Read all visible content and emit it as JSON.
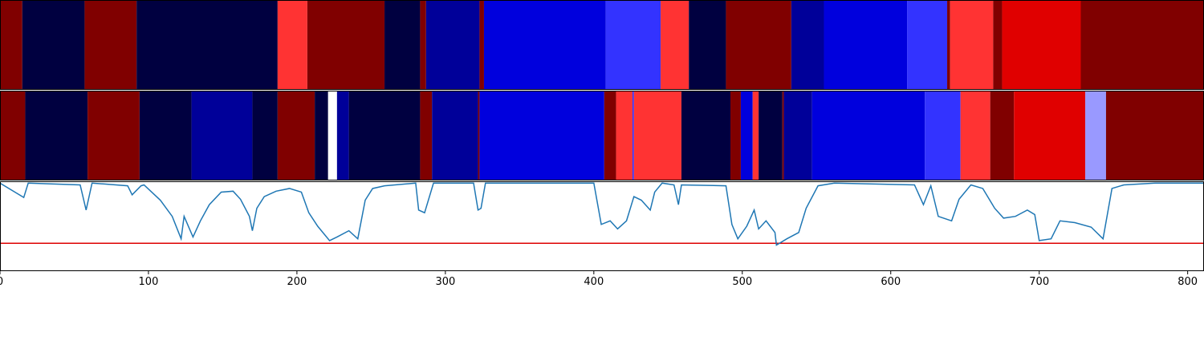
{
  "chart_data": [
    {
      "type": "segments",
      "xlim": [
        0,
        811
      ],
      "segments": [
        {
          "start": 0,
          "end": 15,
          "color": "#800000"
        },
        {
          "start": 15,
          "end": 57,
          "color": "#000040"
        },
        {
          "start": 57,
          "end": 92,
          "color": "#800000"
        },
        {
          "start": 92,
          "end": 187,
          "color": "#000040"
        },
        {
          "start": 187,
          "end": 207,
          "color": "#ff3333"
        },
        {
          "start": 207,
          "end": 259,
          "color": "#800000"
        },
        {
          "start": 259,
          "end": 283,
          "color": "#000040"
        },
        {
          "start": 283,
          "end": 287,
          "color": "#800000"
        },
        {
          "start": 287,
          "end": 323,
          "color": "#000099"
        },
        {
          "start": 323,
          "end": 326,
          "color": "#800000"
        },
        {
          "start": 326,
          "end": 408,
          "color": "#0000dd"
        },
        {
          "start": 408,
          "end": 445,
          "color": "#3333ff"
        },
        {
          "start": 445,
          "end": 464,
          "color": "#ff3333"
        },
        {
          "start": 464,
          "end": 489,
          "color": "#000040"
        },
        {
          "start": 489,
          "end": 533,
          "color": "#800000"
        },
        {
          "start": 533,
          "end": 555,
          "color": "#000099"
        },
        {
          "start": 555,
          "end": 611,
          "color": "#0000dd"
        },
        {
          "start": 611,
          "end": 638,
          "color": "#3333ff"
        },
        {
          "start": 638,
          "end": 640,
          "color": "#800000"
        },
        {
          "start": 640,
          "end": 669,
          "color": "#ff3333"
        },
        {
          "start": 669,
          "end": 675,
          "color": "#800000"
        },
        {
          "start": 675,
          "end": 728,
          "color": "#e00000"
        },
        {
          "start": 728,
          "end": 811,
          "color": "#800000"
        }
      ]
    },
    {
      "type": "segments",
      "xlim": [
        0,
        811
      ],
      "segments": [
        {
          "start": 0,
          "end": 17,
          "color": "#800000"
        },
        {
          "start": 17,
          "end": 59,
          "color": "#000040"
        },
        {
          "start": 59,
          "end": 94,
          "color": "#800000"
        },
        {
          "start": 94,
          "end": 129,
          "color": "#000040"
        },
        {
          "start": 129,
          "end": 170,
          "color": "#000099"
        },
        {
          "start": 170,
          "end": 187,
          "color": "#000040"
        },
        {
          "start": 187,
          "end": 212,
          "color": "#800000"
        },
        {
          "start": 212,
          "end": 221,
          "color": "#000040"
        },
        {
          "start": 221,
          "end": 227,
          "color": "#ffffff"
        },
        {
          "start": 227,
          "end": 235,
          "color": "#000099"
        },
        {
          "start": 235,
          "end": 283,
          "color": "#000040"
        },
        {
          "start": 283,
          "end": 291,
          "color": "#800000"
        },
        {
          "start": 291,
          "end": 322,
          "color": "#000099"
        },
        {
          "start": 322,
          "end": 323,
          "color": "#800000"
        },
        {
          "start": 323,
          "end": 407,
          "color": "#0000dd"
        },
        {
          "start": 407,
          "end": 415,
          "color": "#800000"
        },
        {
          "start": 415,
          "end": 426,
          "color": "#ff3333"
        },
        {
          "start": 426,
          "end": 427,
          "color": "#3333ff"
        },
        {
          "start": 427,
          "end": 459,
          "color": "#ff3333"
        },
        {
          "start": 459,
          "end": 492,
          "color": "#000040"
        },
        {
          "start": 492,
          "end": 499,
          "color": "#800000"
        },
        {
          "start": 499,
          "end": 507,
          "color": "#0000dd"
        },
        {
          "start": 507,
          "end": 511,
          "color": "#ff3333"
        },
        {
          "start": 511,
          "end": 527,
          "color": "#000040"
        },
        {
          "start": 527,
          "end": 528,
          "color": "#800000"
        },
        {
          "start": 528,
          "end": 547,
          "color": "#000099"
        },
        {
          "start": 547,
          "end": 623,
          "color": "#0000dd"
        },
        {
          "start": 623,
          "end": 647,
          "color": "#3333ff"
        },
        {
          "start": 647,
          "end": 667,
          "color": "#ff3333"
        },
        {
          "start": 667,
          "end": 683,
          "color": "#800000"
        },
        {
          "start": 683,
          "end": 731,
          "color": "#e00000"
        },
        {
          "start": 731,
          "end": 745,
          "color": "#9999ff"
        },
        {
          "start": 745,
          "end": 811,
          "color": "#800000"
        }
      ]
    },
    {
      "type": "line",
      "xlim": [
        0,
        811
      ],
      "ylim": [
        0,
        1
      ],
      "xticks": [
        0,
        100,
        200,
        300,
        400,
        500,
        600,
        700,
        800
      ],
      "color": "#1f77b4",
      "threshold": 0.31,
      "threshold_color": "#dd0000",
      "x": [
        0,
        16,
        19,
        54,
        58,
        62,
        86,
        89,
        95,
        97,
        108,
        116,
        122,
        124,
        130,
        135,
        141,
        149,
        157,
        162,
        168,
        170,
        173,
        178,
        186,
        195,
        203,
        208,
        214,
        222,
        227,
        235,
        241,
        246,
        251,
        259,
        280,
        282,
        286,
        292,
        319,
        322,
        324,
        327,
        400,
        405,
        411,
        416,
        422,
        427,
        432,
        438,
        441,
        446,
        454,
        457,
        459,
        489,
        493,
        497,
        503,
        508,
        511,
        516,
        522,
        523,
        530,
        538,
        543,
        551,
        562,
        616,
        622,
        627,
        632,
        641,
        646,
        654,
        662,
        670,
        676,
        684,
        692,
        697,
        700,
        708,
        714,
        724,
        735,
        743,
        749,
        757,
        778,
        811
      ],
      "values": [
        0.98,
        0.82,
        0.98,
        0.96,
        0.68,
        0.98,
        0.95,
        0.85,
        0.95,
        0.96,
        0.79,
        0.61,
        0.36,
        0.61,
        0.38,
        0.56,
        0.74,
        0.88,
        0.89,
        0.8,
        0.61,
        0.45,
        0.7,
        0.83,
        0.89,
        0.92,
        0.88,
        0.65,
        0.5,
        0.34,
        0.38,
        0.45,
        0.36,
        0.79,
        0.92,
        0.95,
        0.98,
        0.68,
        0.65,
        0.98,
        0.98,
        0.68,
        0.7,
        0.98,
        0.98,
        0.52,
        0.56,
        0.47,
        0.56,
        0.83,
        0.79,
        0.68,
        0.88,
        0.98,
        0.96,
        0.74,
        0.96,
        0.95,
        0.52,
        0.36,
        0.5,
        0.68,
        0.47,
        0.56,
        0.43,
        0.29,
        0.36,
        0.43,
        0.7,
        0.95,
        0.98,
        0.96,
        0.74,
        0.95,
        0.61,
        0.56,
        0.8,
        0.96,
        0.92,
        0.7,
        0.59,
        0.61,
        0.68,
        0.63,
        0.34,
        0.36,
        0.56,
        0.54,
        0.49,
        0.36,
        0.92,
        0.96,
        0.98,
        0.98
      ]
    }
  ]
}
